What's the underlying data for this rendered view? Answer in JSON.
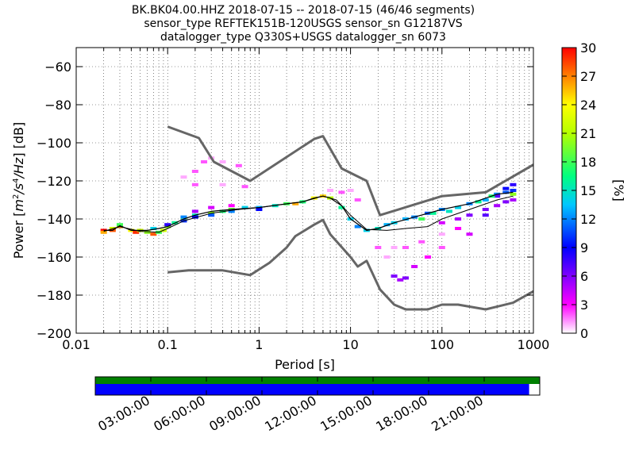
{
  "chart_data": {
    "type": "heatmap",
    "title_lines": [
      "BK.BK04.00.HHZ   2018-07-15 -- 2018-07-15  (46/46 segments)",
      "sensor_type REFTEK151B-120USGS sensor_sn G12187VS",
      "datalogger_type Q330S+USGS datalogger_sn 6073"
    ],
    "xlabel": "Period [s]",
    "ylabel": "Power [m²/s⁴/Hz] [dB]",
    "ylabel_parts": {
      "pre": "Power [",
      "u1": "m",
      "e1": "2",
      "u2": "/s",
      "e2": "4",
      "u3": "/Hz",
      "post": "] [dB]"
    },
    "xscale": "log",
    "xlim": [
      0.01,
      1000
    ],
    "ylim": [
      -200,
      -50
    ],
    "x_ticks": [
      0.01,
      0.1,
      1,
      10,
      100,
      1000
    ],
    "x_tick_labels": [
      "0.01",
      "0.1",
      "1",
      "10",
      "100",
      "1000"
    ],
    "y_ticks": [
      -200,
      -180,
      -160,
      -140,
      -120,
      -100,
      -80,
      -60
    ],
    "y_tick_labels": [
      "−200",
      "−180",
      "−160",
      "−140",
      "−120",
      "−100",
      "−80",
      "−60"
    ],
    "grid": true,
    "colorbar": {
      "label": "[%]",
      "range": [
        0,
        30
      ],
      "ticks": [
        0,
        3,
        6,
        9,
        12,
        15,
        18,
        21,
        24,
        27,
        30
      ],
      "tick_labels": [
        "0",
        "3",
        "6",
        "9",
        "12",
        "15",
        "18",
        "21",
        "24",
        "27",
        "30"
      ],
      "colormap": "pqlx"
    },
    "noise_model_high": [
      [
        0.1,
        -91.5
      ],
      [
        0.22,
        -97.5
      ],
      [
        0.32,
        -110
      ],
      [
        0.8,
        -120
      ],
      [
        4,
        -98
      ],
      [
        5,
        -96.5
      ],
      [
        8,
        -113.5
      ],
      [
        15,
        -120
      ],
      [
        21,
        -138
      ],
      [
        100,
        -128
      ],
      [
        300,
        -126
      ],
      [
        1000,
        -111.5
      ]
    ],
    "noise_model_low": [
      [
        0.1,
        -168
      ],
      [
        0.17,
        -167
      ],
      [
        0.4,
        -167
      ],
      [
        0.8,
        -169.5
      ],
      [
        1.3,
        -163
      ],
      [
        2,
        -155
      ],
      [
        2.5,
        -149
      ],
      [
        4,
        -143
      ],
      [
        5,
        -140.5
      ],
      [
        6,
        -148
      ],
      [
        10,
        -160
      ],
      [
        12,
        -165
      ],
      [
        15,
        -162
      ],
      [
        21,
        -177
      ],
      [
        30,
        -185
      ],
      [
        40,
        -187.5
      ],
      [
        70,
        -187.5
      ],
      [
        100,
        -185
      ],
      [
        150,
        -185
      ],
      [
        300,
        -187.5
      ],
      [
        600,
        -184
      ],
      [
        1000,
        -178
      ]
    ],
    "mode_curve": [
      [
        0.02,
        -146
      ],
      [
        0.025,
        -146
      ],
      [
        0.03,
        -143.5
      ],
      [
        0.04,
        -146
      ],
      [
        0.06,
        -146
      ],
      [
        0.08,
        -145
      ],
      [
        0.1,
        -144
      ],
      [
        0.15,
        -140
      ],
      [
        0.2,
        -138
      ],
      [
        0.3,
        -136
      ],
      [
        0.5,
        -135
      ],
      [
        1,
        -134
      ],
      [
        2,
        -132
      ],
      [
        3,
        -131
      ],
      [
        4,
        -129
      ],
      [
        5,
        -128
      ],
      [
        6,
        -129
      ],
      [
        8,
        -133
      ],
      [
        10,
        -140
      ],
      [
        15,
        -146
      ],
      [
        20,
        -145
      ],
      [
        30,
        -142
      ],
      [
        50,
        -139
      ],
      [
        100,
        -135
      ],
      [
        200,
        -132
      ],
      [
        400,
        -127
      ],
      [
        600,
        -126
      ]
    ],
    "mean_curve": [
      [
        0.02,
        -146.5
      ],
      [
        0.03,
        -144
      ],
      [
        0.05,
        -146.5
      ],
      [
        0.08,
        -147
      ],
      [
        0.1,
        -145
      ],
      [
        0.15,
        -141
      ],
      [
        0.3,
        -137
      ],
      [
        0.6,
        -135
      ],
      [
        1,
        -134
      ],
      [
        3,
        -131
      ],
      [
        5,
        -128
      ],
      [
        7,
        -130
      ],
      [
        10,
        -138
      ],
      [
        15,
        -145.5
      ],
      [
        25,
        -146
      ],
      [
        40,
        -145
      ],
      [
        70,
        -144
      ],
      [
        100,
        -140
      ],
      [
        200,
        -135
      ],
      [
        400,
        -130
      ],
      [
        600,
        -128
      ]
    ],
    "histogram_cells": [
      [
        0.02,
        -146,
        30
      ],
      [
        0.02,
        -147,
        26
      ],
      [
        0.025,
        -145,
        22
      ],
      [
        0.025,
        -146,
        28
      ],
      [
        0.03,
        -144,
        27
      ],
      [
        0.03,
        -143,
        18
      ],
      [
        0.04,
        -146,
        24
      ],
      [
        0.045,
        -147,
        29
      ],
      [
        0.05,
        -146,
        22
      ],
      [
        0.06,
        -147,
        20
      ],
      [
        0.07,
        -148,
        28
      ],
      [
        0.08,
        -147,
        18
      ],
      [
        0.07,
        -145,
        14
      ],
      [
        0.09,
        -146,
        22
      ],
      [
        0.1,
        -144,
        20
      ],
      [
        0.12,
        -142,
        16
      ],
      [
        0.15,
        -140,
        19
      ],
      [
        0.2,
        -138,
        15
      ],
      [
        0.3,
        -137,
        20
      ],
      [
        0.4,
        -136,
        17
      ],
      [
        0.5,
        -135,
        19
      ],
      [
        0.7,
        -134,
        14
      ],
      [
        1,
        -134,
        13
      ],
      [
        1.5,
        -133,
        15
      ],
      [
        2,
        -132,
        18
      ],
      [
        2.5,
        -132,
        26
      ],
      [
        3,
        -131,
        17
      ],
      [
        4,
        -129,
        24
      ],
      [
        5,
        -128,
        25
      ],
      [
        6,
        -129,
        21
      ],
      [
        8,
        -134,
        16
      ],
      [
        10,
        -140,
        14
      ],
      [
        12,
        -144,
        12
      ],
      [
        15,
        -146,
        14
      ],
      [
        20,
        -145,
        15
      ],
      [
        25,
        -143,
        13
      ],
      [
        30,
        -142,
        14
      ],
      [
        40,
        -140,
        13
      ],
      [
        50,
        -139,
        12
      ],
      [
        70,
        -137,
        11
      ],
      [
        100,
        -135,
        12
      ],
      [
        150,
        -134,
        14
      ],
      [
        200,
        -132,
        12
      ],
      [
        300,
        -130,
        13
      ],
      [
        400,
        -127,
        12
      ],
      [
        500,
        -126,
        11
      ],
      [
        600,
        -125,
        10
      ],
      [
        0.1,
        -143,
        8
      ],
      [
        0.15,
        -141,
        10
      ],
      [
        0.2,
        -139,
        9
      ],
      [
        0.3,
        -138,
        11
      ],
      [
        0.5,
        -136,
        12
      ],
      [
        1,
        -135,
        9
      ],
      [
        0.15,
        -139,
        12
      ],
      [
        0.3,
        -134,
        4
      ],
      [
        0.5,
        -133,
        3
      ],
      [
        0.2,
        -136,
        5
      ],
      [
        0.2,
        -115,
        2
      ],
      [
        0.25,
        -110,
        2
      ],
      [
        0.3,
        -108,
        1
      ],
      [
        0.4,
        -110,
        1
      ],
      [
        0.6,
        -112,
        2
      ],
      [
        0.15,
        -118,
        1
      ],
      [
        0.2,
        -122,
        2
      ],
      [
        0.4,
        -122,
        1
      ],
      [
        0.7,
        -123,
        2
      ],
      [
        6,
        -125,
        1
      ],
      [
        8,
        -126,
        2
      ],
      [
        10,
        -125,
        1
      ],
      [
        12,
        -130,
        2
      ],
      [
        20,
        -155,
        2
      ],
      [
        25,
        -160,
        1
      ],
      [
        30,
        -170,
        6
      ],
      [
        35,
        -172,
        5
      ],
      [
        40,
        -171,
        6
      ],
      [
        50,
        -165,
        4
      ],
      [
        70,
        -160,
        3
      ],
      [
        100,
        -155,
        2
      ],
      [
        30,
        -155,
        1
      ],
      [
        40,
        -155,
        2
      ],
      [
        60,
        -152,
        2
      ],
      [
        100,
        -148,
        1
      ],
      [
        150,
        -145,
        3
      ],
      [
        200,
        -148,
        4
      ],
      [
        300,
        -138,
        7
      ],
      [
        300,
        -135,
        6
      ],
      [
        400,
        -133,
        5
      ],
      [
        500,
        -131,
        6
      ],
      [
        600,
        -130,
        5
      ],
      [
        600,
        -122,
        8
      ],
      [
        500,
        -124,
        9
      ],
      [
        400,
        -128,
        7
      ],
      [
        200,
        -138,
        6
      ],
      [
        150,
        -140,
        5
      ],
      [
        100,
        -142,
        4
      ],
      [
        60,
        -140,
        18
      ],
      [
        80,
        -137,
        16
      ],
      [
        120,
        -136,
        15
      ],
      [
        250,
        -131,
        16
      ],
      [
        350,
        -128,
        17
      ],
      [
        600,
        -127,
        20
      ]
    ]
  },
  "time_axis": {
    "tick_labels": [
      "03:00:00",
      "06:00:00",
      "09:00:00",
      "12:00:00",
      "15:00:00",
      "18:00:00",
      "21:00:00"
    ],
    "coverage_fraction": 0.976,
    "coverage_colors": {
      "top": "#008000",
      "bottom": "#0000ff"
    }
  }
}
